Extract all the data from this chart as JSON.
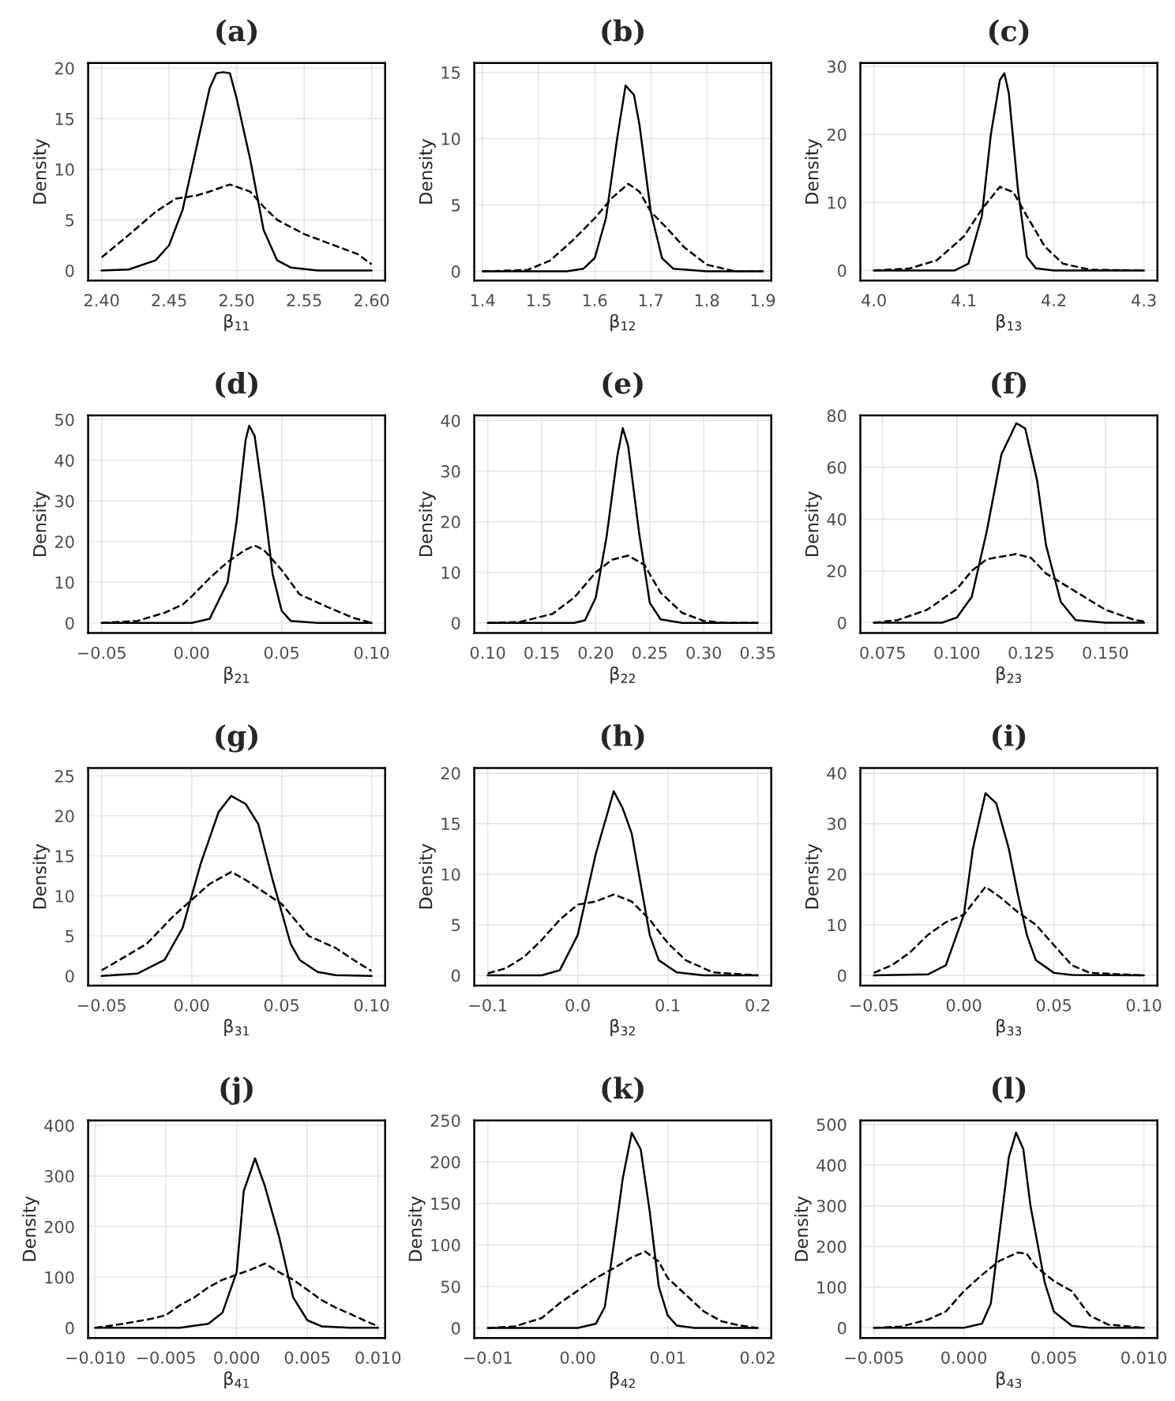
{
  "chart_data": [
    {
      "type": "line",
      "title": "(a)",
      "xlabel": "β$_{11}$",
      "ylabel": "Density",
      "grid": true,
      "xlim": [
        2.39,
        2.61
      ],
      "ylim": [
        -1,
        20.5
      ],
      "xticks": [
        {
          "value": 2.4,
          "label": "2.40"
        },
        {
          "value": 2.45,
          "label": "2.45"
        },
        {
          "value": 2.5,
          "label": "2.50"
        },
        {
          "value": 2.55,
          "label": "2.55"
        },
        {
          "value": 2.6,
          "label": "2.60"
        }
      ],
      "yticks": [
        0,
        5,
        10,
        15,
        20
      ],
      "series": [
        {
          "color": "#000000",
          "line_style": "solid",
          "x": [
            2.4,
            2.42,
            2.44,
            2.45,
            2.46,
            2.47,
            2.48,
            2.485,
            2.49,
            2.495,
            2.5,
            2.51,
            2.52,
            2.53,
            2.54,
            2.56,
            2.6
          ],
          "values": [
            0,
            0.1,
            1,
            2.5,
            6,
            12,
            18,
            19.5,
            19.6,
            19.5,
            17,
            11,
            4,
            1,
            0.3,
            0,
            0
          ]
        },
        {
          "color": "#000000",
          "line_style": "dashed",
          "x": [
            2.4,
            2.42,
            2.44,
            2.455,
            2.47,
            2.48,
            2.495,
            2.51,
            2.52,
            2.53,
            2.55,
            2.57,
            2.59,
            2.6
          ],
          "values": [
            1.3,
            3.5,
            5.8,
            7.1,
            7.4,
            7.8,
            8.5,
            7.8,
            6.3,
            5.0,
            3.6,
            2.6,
            1.6,
            0.6
          ]
        }
      ]
    },
    {
      "type": "line",
      "title": "(b)",
      "xlabel": "β$_{12}$",
      "ylabel": "Density",
      "grid": true,
      "xlim": [
        1.385,
        1.915
      ],
      "ylim": [
        -0.7,
        15.7
      ],
      "xticks": [
        1.4,
        1.5,
        1.6,
        1.7,
        1.8,
        1.9
      ],
      "yticks": [
        0,
        5,
        10,
        15
      ],
      "series": [
        {
          "color": "#000000",
          "line_style": "solid",
          "x": [
            1.4,
            1.55,
            1.58,
            1.6,
            1.62,
            1.64,
            1.655,
            1.67,
            1.68,
            1.7,
            1.72,
            1.74,
            1.8,
            1.9
          ],
          "values": [
            0,
            0,
            0.2,
            1,
            4,
            10,
            14,
            13.3,
            11,
            4.5,
            1,
            0.2,
            0,
            0
          ]
        },
        {
          "color": "#000000",
          "line_style": "dashed",
          "x": [
            1.4,
            1.48,
            1.52,
            1.56,
            1.6,
            1.63,
            1.66,
            1.68,
            1.7,
            1.73,
            1.76,
            1.8,
            1.85,
            1.9
          ],
          "values": [
            0,
            0.1,
            0.8,
            2.3,
            4.0,
            5.5,
            6.6,
            6,
            4.5,
            3.2,
            1.8,
            0.5,
            0,
            0
          ]
        }
      ]
    },
    {
      "type": "line",
      "title": "(c)",
      "xlabel": "β$_{13}$",
      "ylabel": "Density",
      "grid": true,
      "xlim": [
        3.985,
        4.315
      ],
      "ylim": [
        -1.5,
        30.5
      ],
      "xticks": [
        {
          "value": 4.0,
          "label": "4.0"
        },
        4.1,
        4.2,
        4.3
      ],
      "yticks": [
        0,
        10,
        20,
        30
      ],
      "series": [
        {
          "color": "#000000",
          "line_style": "solid",
          "x": [
            4.0,
            4.09,
            4.105,
            4.12,
            4.13,
            4.14,
            4.145,
            4.15,
            4.16,
            4.17,
            4.18,
            4.2,
            4.3
          ],
          "values": [
            0,
            0,
            1,
            8,
            20,
            28,
            29,
            26,
            12,
            2,
            0.3,
            0,
            0
          ]
        },
        {
          "color": "#000000",
          "line_style": "dashed",
          "x": [
            4.0,
            4.04,
            4.07,
            4.1,
            4.12,
            4.14,
            4.155,
            4.17,
            4.19,
            4.21,
            4.24,
            4.3
          ],
          "values": [
            0,
            0.3,
            1.5,
            5,
            9,
            12.3,
            11.5,
            8,
            3.5,
            1,
            0.1,
            0
          ]
        }
      ]
    },
    {
      "type": "line",
      "title": "(d)",
      "xlabel": "β$_{21}$",
      "ylabel": "Density",
      "grid": true,
      "xlim": [
        -0.0575,
        0.1075
      ],
      "ylim": [
        -2.5,
        51
      ],
      "xticks": [
        {
          "value": -0.05,
          "label": "−0.05"
        },
        {
          "value": 0,
          "label": "0.00"
        },
        {
          "value": 0.05,
          "label": "0.05"
        },
        {
          "value": 0.1,
          "label": "0.10"
        }
      ],
      "yticks": [
        0,
        10,
        20,
        30,
        40,
        50
      ],
      "series": [
        {
          "color": "#000000",
          "line_style": "solid",
          "x": [
            -0.05,
            0.0,
            0.01,
            0.02,
            0.025,
            0.03,
            0.032,
            0.035,
            0.04,
            0.045,
            0.05,
            0.055,
            0.07,
            0.1
          ],
          "values": [
            0,
            0,
            1,
            10,
            25,
            45,
            48.5,
            46,
            30,
            12,
            3,
            0.5,
            0,
            0
          ]
        },
        {
          "color": "#000000",
          "line_style": "dashed",
          "x": [
            -0.05,
            -0.03,
            -0.015,
            -0.005,
            0.0,
            0.01,
            0.02,
            0.03,
            0.035,
            0.04,
            0.05,
            0.06,
            0.075,
            0.09,
            0.1
          ],
          "values": [
            0,
            0.5,
            2.5,
            4.5,
            6.5,
            11,
            15,
            18,
            19,
            18,
            13,
            7,
            4,
            1.2,
            0
          ]
        }
      ]
    },
    {
      "type": "line",
      "title": "(e)",
      "xlabel": "β$_{22}$",
      "ylabel": "Density",
      "grid": true,
      "xlim": [
        0.0875,
        0.3625
      ],
      "ylim": [
        -2,
        41
      ],
      "xticks": [
        {
          "value": 0.1,
          "label": "0.10"
        },
        {
          "value": 0.15,
          "label": "0.15"
        },
        {
          "value": 0.2,
          "label": "0.20"
        },
        {
          "value": 0.25,
          "label": "0.25"
        },
        {
          "value": 0.3,
          "label": "0.30"
        },
        {
          "value": 0.35,
          "label": "0.35"
        }
      ],
      "yticks": [
        0,
        10,
        20,
        30,
        40
      ],
      "series": [
        {
          "color": "#000000",
          "line_style": "solid",
          "x": [
            0.1,
            0.18,
            0.19,
            0.2,
            0.21,
            0.22,
            0.225,
            0.23,
            0.24,
            0.25,
            0.26,
            0.28,
            0.35
          ],
          "values": [
            0,
            0,
            0.5,
            5,
            17,
            33,
            38.5,
            35,
            18,
            4,
            0.7,
            0,
            0
          ]
        },
        {
          "color": "#000000",
          "line_style": "dashed",
          "x": [
            0.1,
            0.13,
            0.16,
            0.18,
            0.2,
            0.215,
            0.23,
            0.245,
            0.26,
            0.28,
            0.3,
            0.32,
            0.35
          ],
          "values": [
            0,
            0.2,
            1.8,
            5,
            10,
            12.5,
            13.3,
            11.5,
            6,
            2,
            0.4,
            0,
            0
          ]
        }
      ]
    },
    {
      "type": "line",
      "title": "(f)",
      "xlabel": "β$_{23}$",
      "ylabel": "Density",
      "grid": true,
      "xlim": [
        0.0675,
        0.1675
      ],
      "ylim": [
        -4,
        80
      ],
      "xticks": [
        {
          "value": 0.075,
          "label": "0.075"
        },
        {
          "value": 0.1,
          "label": "0.100"
        },
        {
          "value": 0.125,
          "label": "0.125"
        },
        {
          "value": 0.15,
          "label": "0.150"
        }
      ],
      "yticks": [
        0,
        20,
        40,
        60,
        80
      ],
      "series": [
        {
          "color": "#000000",
          "line_style": "solid",
          "x": [
            0.072,
            0.095,
            0.1,
            0.105,
            0.11,
            0.115,
            0.12,
            0.123,
            0.127,
            0.13,
            0.135,
            0.14,
            0.15,
            0.163
          ],
          "values": [
            0,
            0,
            2,
            10,
            35,
            65,
            77,
            75,
            55,
            30,
            8,
            1,
            0,
            0
          ]
        },
        {
          "color": "#000000",
          "line_style": "dashed",
          "x": [
            0.072,
            0.08,
            0.09,
            0.1,
            0.105,
            0.11,
            0.115,
            0.12,
            0.125,
            0.13,
            0.14,
            0.15,
            0.16,
            0.163
          ],
          "values": [
            0,
            1,
            5,
            13,
            20,
            24.5,
            25.5,
            26.5,
            25,
            19,
            12,
            5,
            1,
            0.5
          ]
        }
      ]
    },
    {
      "type": "line",
      "title": "(g)",
      "xlabel": "β$_{31}$",
      "ylabel": "Density",
      "grid": true,
      "xlim": [
        -0.0575,
        0.1075
      ],
      "ylim": [
        -1.2,
        26
      ],
      "xticks": [
        {
          "value": -0.05,
          "label": "−0.05"
        },
        {
          "value": 0,
          "label": "0.00"
        },
        {
          "value": 0.05,
          "label": "0.05"
        },
        {
          "value": 0.1,
          "label": "0.10"
        }
      ],
      "yticks": [
        0,
        5,
        10,
        15,
        20,
        25
      ],
      "series": [
        {
          "color": "#000000",
          "line_style": "solid",
          "x": [
            -0.05,
            -0.03,
            -0.015,
            -0.005,
            0.005,
            0.015,
            0.022,
            0.03,
            0.037,
            0.045,
            0.055,
            0.06,
            0.07,
            0.08,
            0.1
          ],
          "values": [
            0,
            0.3,
            2,
            6,
            14,
            20.5,
            22.5,
            21.5,
            19,
            12,
            4,
            2,
            0.5,
            0.1,
            0
          ]
        },
        {
          "color": "#000000",
          "line_style": "dashed",
          "x": [
            -0.05,
            -0.04,
            -0.025,
            -0.01,
            0.0,
            0.01,
            0.022,
            0.03,
            0.04,
            0.05,
            0.065,
            0.08,
            0.09,
            0.1
          ],
          "values": [
            0.7,
            2,
            4,
            7.5,
            9.5,
            11.5,
            13,
            12,
            10.5,
            9,
            5,
            3.5,
            2,
            0.6
          ]
        }
      ]
    },
    {
      "type": "line",
      "title": "(h)",
      "xlabel": "β$_{32}$",
      "ylabel": "Density",
      "grid": true,
      "xlim": [
        -0.115,
        0.215
      ],
      "ylim": [
        -1,
        20.5
      ],
      "xticks": [
        {
          "value": -0.1,
          "label": "−0.1"
        },
        {
          "value": 0,
          "label": "0.0"
        },
        0.1,
        0.2
      ],
      "yticks": [
        0,
        5,
        10,
        15,
        20
      ],
      "series": [
        {
          "color": "#000000",
          "line_style": "solid",
          "x": [
            -0.1,
            -0.04,
            -0.02,
            0.0,
            0.02,
            0.04,
            0.05,
            0.06,
            0.07,
            0.08,
            0.09,
            0.11,
            0.14,
            0.2
          ],
          "values": [
            0,
            0,
            0.5,
            4,
            12,
            18.2,
            16.5,
            14,
            9,
            4,
            1.5,
            0.3,
            0,
            0
          ]
        },
        {
          "color": "#000000",
          "line_style": "dashed",
          "x": [
            -0.1,
            -0.08,
            -0.06,
            -0.04,
            -0.02,
            0.0,
            0.02,
            0.04,
            0.06,
            0.08,
            0.1,
            0.12,
            0.15,
            0.2
          ],
          "values": [
            0.2,
            0.7,
            1.8,
            3.5,
            5.5,
            7,
            7.3,
            8,
            7.3,
            5.5,
            3.2,
            1.5,
            0.3,
            0
          ]
        }
      ]
    },
    {
      "type": "line",
      "title": "(i)",
      "xlabel": "β$_{33}$",
      "ylabel": "Density",
      "grid": true,
      "xlim": [
        -0.0575,
        0.1075
      ],
      "ylim": [
        -2,
        41
      ],
      "xticks": [
        {
          "value": -0.05,
          "label": "−0.05"
        },
        {
          "value": 0,
          "label": "0.00"
        },
        {
          "value": 0.05,
          "label": "0.05"
        },
        {
          "value": 0.1,
          "label": "0.10"
        }
      ],
      "yticks": [
        0,
        10,
        20,
        30,
        40
      ],
      "series": [
        {
          "color": "#000000",
          "line_style": "solid",
          "x": [
            -0.05,
            -0.02,
            -0.01,
            0.0,
            0.005,
            0.012,
            0.018,
            0.025,
            0.03,
            0.035,
            0.04,
            0.05,
            0.06,
            0.1
          ],
          "values": [
            0,
            0.2,
            2,
            12,
            25,
            36,
            34,
            25,
            16,
            8,
            3,
            0.5,
            0.1,
            0
          ]
        },
        {
          "color": "#000000",
          "line_style": "dashed",
          "x": [
            -0.05,
            -0.04,
            -0.03,
            -0.02,
            -0.01,
            0.0,
            0.012,
            0.02,
            0.03,
            0.04,
            0.05,
            0.06,
            0.07,
            0.1
          ],
          "values": [
            0.5,
            2,
            4.5,
            8,
            10.5,
            12,
            17.5,
            15.5,
            12.5,
            10,
            6,
            2,
            0.5,
            0
          ]
        }
      ]
    },
    {
      "type": "line",
      "title": "(j)",
      "xlabel": "β$_{41}$",
      "ylabel": "Density",
      "grid": true,
      "xlim": [
        -0.0105,
        0.0105
      ],
      "ylim": [
        -20,
        410
      ],
      "xticks": [
        {
          "value": -0.01,
          "label": "−0.010"
        },
        {
          "value": -0.005,
          "label": "−0.005"
        },
        {
          "value": 0,
          "label": "0.000"
        },
        {
          "value": 0.005,
          "label": "0.005"
        },
        {
          "value": 0.01,
          "label": "0.010"
        }
      ],
      "yticks": [
        0,
        100,
        200,
        300,
        400
      ],
      "series": [
        {
          "color": "#000000",
          "line_style": "solid",
          "x": [
            -0.01,
            -0.004,
            -0.002,
            -0.001,
            0.0,
            0.0005,
            0.0013,
            0.002,
            0.003,
            0.004,
            0.005,
            0.006,
            0.008,
            0.01
          ],
          "values": [
            0,
            0,
            8,
            30,
            110,
            270,
            335,
            280,
            180,
            60,
            15,
            3,
            0,
            0
          ]
        },
        {
          "color": "#000000",
          "line_style": "dashed",
          "x": [
            -0.01,
            -0.008,
            -0.006,
            -0.005,
            -0.004,
            -0.003,
            -0.002,
            -0.001,
            0.0,
            0.001,
            0.002,
            0.003,
            0.004,
            0.005,
            0.006,
            0.007,
            0.008,
            0.009,
            0.01
          ],
          "values": [
            0,
            8,
            18,
            25,
            45,
            60,
            80,
            95,
            105,
            115,
            127,
            110,
            95,
            75,
            55,
            40,
            28,
            15,
            3
          ]
        }
      ]
    },
    {
      "type": "line",
      "title": "(k)",
      "xlabel": "β$_{42}$",
      "ylabel": "Density",
      "grid": true,
      "xlim": [
        -0.0115,
        0.0215
      ],
      "ylim": [
        -12,
        250
      ],
      "xticks": [
        {
          "value": -0.01,
          "label": "−0.01"
        },
        {
          "value": 0,
          "label": "0.00"
        },
        0.01,
        0.02
      ],
      "yticks": [
        0,
        50,
        100,
        150,
        200,
        250
      ],
      "series": [
        {
          "color": "#000000",
          "line_style": "solid",
          "x": [
            -0.01,
            0.0,
            0.002,
            0.003,
            0.004,
            0.005,
            0.006,
            0.007,
            0.008,
            0.009,
            0.01,
            0.011,
            0.013,
            0.02
          ],
          "values": [
            0,
            0,
            5,
            25,
            100,
            180,
            235,
            215,
            140,
            50,
            15,
            3,
            0,
            0
          ]
        },
        {
          "color": "#000000",
          "line_style": "dashed",
          "x": [
            -0.01,
            -0.007,
            -0.004,
            -0.002,
            0.0,
            0.002,
            0.004,
            0.006,
            0.0075,
            0.009,
            0.01,
            0.012,
            0.014,
            0.016,
            0.018,
            0.02
          ],
          "values": [
            0,
            2,
            12,
            30,
            45,
            60,
            72,
            85,
            92,
            80,
            60,
            40,
            20,
            8,
            3,
            0
          ]
        }
      ]
    },
    {
      "type": "line",
      "title": "(l)",
      "xlabel": "β$_{43}$",
      "ylabel": "Density",
      "grid": true,
      "xlim": [
        -0.00575,
        0.01075
      ],
      "ylim": [
        -25,
        510
      ],
      "xticks": [
        {
          "value": -0.005,
          "label": "−0.005"
        },
        {
          "value": 0,
          "label": "0.000"
        },
        {
          "value": 0.005,
          "label": "0.005"
        },
        {
          "value": 0.01,
          "label": "0.010"
        }
      ],
      "yticks": [
        0,
        100,
        200,
        300,
        400,
        500
      ],
      "series": [
        {
          "color": "#000000",
          "line_style": "solid",
          "x": [
            -0.005,
            0.0,
            0.001,
            0.0015,
            0.002,
            0.0025,
            0.0029,
            0.0033,
            0.0037,
            0.0045,
            0.005,
            0.006,
            0.007,
            0.01
          ],
          "values": [
            0,
            0,
            10,
            60,
            240,
            420,
            480,
            440,
            300,
            110,
            40,
            5,
            0,
            0
          ]
        },
        {
          "color": "#000000",
          "line_style": "dashed",
          "x": [
            -0.005,
            -0.0035,
            -0.002,
            -0.001,
            0.0,
            0.001,
            0.002,
            0.003,
            0.0035,
            0.004,
            0.005,
            0.006,
            0.007,
            0.008,
            0.01
          ],
          "values": [
            0,
            3,
            20,
            40,
            90,
            130,
            165,
            185,
            182,
            150,
            115,
            90,
            30,
            8,
            0
          ]
        }
      ]
    }
  ]
}
